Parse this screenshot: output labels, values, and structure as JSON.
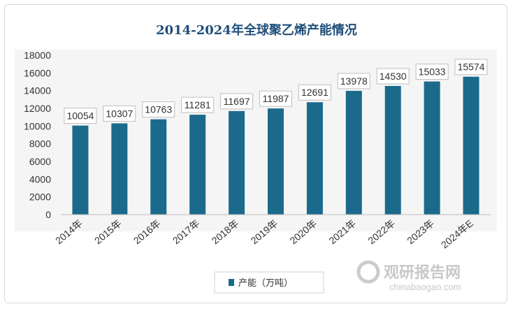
{
  "chart_data": {
    "type": "bar",
    "title": "2014-2024年全球聚乙烯产能情况",
    "categories": [
      "2014年",
      "2015年",
      "2016年",
      "2017年",
      "2018年",
      "2019年",
      "2020年",
      "2021年",
      "2022年",
      "2023年",
      "2024年E"
    ],
    "series": [
      {
        "name": "产能（万吨）",
        "values": [
          10054,
          10307,
          10763,
          11281,
          11697,
          11987,
          12691,
          13978,
          14530,
          15033,
          15574
        ]
      }
    ],
    "ylim": [
      0,
      18000
    ],
    "yticks": [
      0,
      2000,
      4000,
      6000,
      8000,
      10000,
      12000,
      14000,
      16000,
      18000
    ],
    "grid": false,
    "legend": "bottom-center",
    "bar_color": "#1b6a8c"
  },
  "watermark": {
    "text": "观研报告网",
    "sub": "chinabaogao.com"
  }
}
